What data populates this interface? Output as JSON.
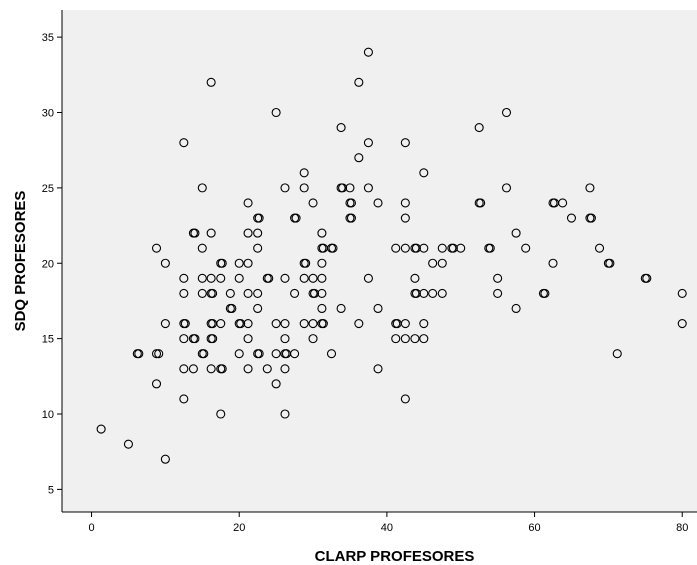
{
  "chart_data": {
    "type": "scatter",
    "title": "",
    "xlabel": "CLARP PROFESORES",
    "ylabel": "SDQ PROFESORES",
    "xlim": [
      -4,
      82
    ],
    "ylim": [
      3.5,
      36.8
    ],
    "xticks": [
      0,
      20,
      40,
      60,
      80
    ],
    "yticks": [
      5,
      10,
      15,
      20,
      25,
      30,
      35
    ],
    "grid": false,
    "plot_background": "#f0f0f0",
    "marker": "open-circle",
    "points": [
      [
        1.3,
        9
      ],
      [
        5.0,
        8
      ],
      [
        10.0,
        7
      ],
      [
        6.2,
        14
      ],
      [
        6.4,
        14
      ],
      [
        8.8,
        12
      ],
      [
        8.8,
        14
      ],
      [
        9.1,
        14
      ],
      [
        8.8,
        21
      ],
      [
        10.0,
        20
      ],
      [
        10.0,
        16
      ],
      [
        12.5,
        28
      ],
      [
        12.5,
        19
      ],
      [
        12.5,
        18
      ],
      [
        12.5,
        16
      ],
      [
        12.7,
        16
      ],
      [
        12.5,
        15
      ],
      [
        12.5,
        13
      ],
      [
        12.5,
        11
      ],
      [
        13.8,
        22
      ],
      [
        14.0,
        22
      ],
      [
        13.8,
        15
      ],
      [
        14.0,
        15
      ],
      [
        13.8,
        13
      ],
      [
        15.0,
        25
      ],
      [
        15.0,
        21
      ],
      [
        15.0,
        19
      ],
      [
        15.0,
        18
      ],
      [
        15.0,
        14
      ],
      [
        15.2,
        14
      ],
      [
        16.2,
        32
      ],
      [
        16.2,
        22
      ],
      [
        16.2,
        19
      ],
      [
        16.2,
        18
      ],
      [
        16.4,
        18
      ],
      [
        16.2,
        16
      ],
      [
        16.4,
        16
      ],
      [
        16.2,
        15
      ],
      [
        16.4,
        15
      ],
      [
        16.2,
        13
      ],
      [
        17.5,
        20
      ],
      [
        17.7,
        20
      ],
      [
        17.5,
        19
      ],
      [
        17.5,
        16
      ],
      [
        17.5,
        13
      ],
      [
        17.7,
        13
      ],
      [
        17.5,
        10
      ],
      [
        18.8,
        18
      ],
      [
        18.8,
        17
      ],
      [
        19.0,
        17
      ],
      [
        20.0,
        20
      ],
      [
        20.0,
        19
      ],
      [
        20.0,
        16
      ],
      [
        20.2,
        16
      ],
      [
        20.0,
        14
      ],
      [
        21.2,
        24
      ],
      [
        21.2,
        22
      ],
      [
        21.2,
        20
      ],
      [
        21.2,
        18
      ],
      [
        21.2,
        16
      ],
      [
        21.2,
        15
      ],
      [
        21.2,
        13
      ],
      [
        22.5,
        23
      ],
      [
        22.7,
        23
      ],
      [
        22.5,
        22
      ],
      [
        22.5,
        21
      ],
      [
        22.5,
        18
      ],
      [
        22.5,
        17
      ],
      [
        22.5,
        14
      ],
      [
        22.7,
        14
      ],
      [
        23.8,
        19
      ],
      [
        24.0,
        19
      ],
      [
        23.8,
        13
      ],
      [
        25.0,
        30
      ],
      [
        25.0,
        16
      ],
      [
        25.0,
        14
      ],
      [
        25.0,
        12
      ],
      [
        26.2,
        25
      ],
      [
        26.2,
        19
      ],
      [
        26.2,
        16
      ],
      [
        26.2,
        15
      ],
      [
        26.2,
        14
      ],
      [
        26.4,
        14
      ],
      [
        26.2,
        13
      ],
      [
        26.2,
        10
      ],
      [
        27.5,
        23
      ],
      [
        27.7,
        23
      ],
      [
        27.5,
        18
      ],
      [
        27.5,
        14
      ],
      [
        28.8,
        26
      ],
      [
        28.8,
        25
      ],
      [
        28.8,
        20
      ],
      [
        29.0,
        20
      ],
      [
        28.8,
        19
      ],
      [
        28.8,
        16
      ],
      [
        30.0,
        24
      ],
      [
        30.0,
        19
      ],
      [
        30.0,
        18
      ],
      [
        30.2,
        18
      ],
      [
        30.0,
        16
      ],
      [
        30.0,
        15
      ],
      [
        31.2,
        22
      ],
      [
        31.2,
        21
      ],
      [
        31.4,
        21
      ],
      [
        31.2,
        20
      ],
      [
        31.2,
        19
      ],
      [
        31.2,
        18
      ],
      [
        31.2,
        17
      ],
      [
        31.2,
        16
      ],
      [
        31.4,
        16
      ],
      [
        32.5,
        21
      ],
      [
        32.7,
        21
      ],
      [
        32.5,
        14
      ],
      [
        33.8,
        29
      ],
      [
        33.8,
        25
      ],
      [
        34.0,
        25
      ],
      [
        33.8,
        17
      ],
      [
        35.0,
        25
      ],
      [
        35.0,
        24
      ],
      [
        35.2,
        24
      ],
      [
        35.0,
        23
      ],
      [
        35.2,
        23
      ],
      [
        36.2,
        32
      ],
      [
        36.2,
        27
      ],
      [
        36.2,
        16
      ],
      [
        37.5,
        34
      ],
      [
        37.5,
        28
      ],
      [
        37.5,
        25
      ],
      [
        37.5,
        19
      ],
      [
        38.8,
        24
      ],
      [
        38.8,
        17
      ],
      [
        38.8,
        13
      ],
      [
        41.2,
        21
      ],
      [
        41.2,
        16
      ],
      [
        41.4,
        16
      ],
      [
        41.2,
        15
      ],
      [
        42.5,
        28
      ],
      [
        42.5,
        24
      ],
      [
        42.5,
        23
      ],
      [
        42.5,
        21
      ],
      [
        42.5,
        16
      ],
      [
        42.5,
        15
      ],
      [
        42.5,
        11
      ],
      [
        43.8,
        21
      ],
      [
        44.0,
        21
      ],
      [
        43.8,
        19
      ],
      [
        43.8,
        18
      ],
      [
        44.0,
        18
      ],
      [
        43.8,
        15
      ],
      [
        45.0,
        26
      ],
      [
        45.0,
        21
      ],
      [
        45.0,
        18
      ],
      [
        45.0,
        16
      ],
      [
        45.0,
        15
      ],
      [
        46.2,
        20
      ],
      [
        46.2,
        18
      ],
      [
        47.5,
        21
      ],
      [
        47.5,
        20
      ],
      [
        47.5,
        18
      ],
      [
        48.8,
        21
      ],
      [
        49.0,
        21
      ],
      [
        50.0,
        21
      ],
      [
        52.5,
        29
      ],
      [
        52.5,
        24
      ],
      [
        52.7,
        24
      ],
      [
        53.8,
        21
      ],
      [
        54.0,
        21
      ],
      [
        55.0,
        19
      ],
      [
        55.0,
        18
      ],
      [
        56.2,
        30
      ],
      [
        56.2,
        25
      ],
      [
        57.5,
        22
      ],
      [
        57.5,
        17
      ],
      [
        58.8,
        21
      ],
      [
        61.2,
        18
      ],
      [
        61.4,
        18
      ],
      [
        62.5,
        24
      ],
      [
        62.7,
        24
      ],
      [
        62.5,
        20
      ],
      [
        63.8,
        24
      ],
      [
        65.0,
        23
      ],
      [
        67.5,
        25
      ],
      [
        67.5,
        23
      ],
      [
        67.7,
        23
      ],
      [
        68.8,
        21
      ],
      [
        70.0,
        20
      ],
      [
        70.2,
        20
      ],
      [
        71.2,
        14
      ],
      [
        75.0,
        19
      ],
      [
        75.2,
        19
      ],
      [
        80.0,
        18
      ],
      [
        80.0,
        16
      ]
    ]
  }
}
